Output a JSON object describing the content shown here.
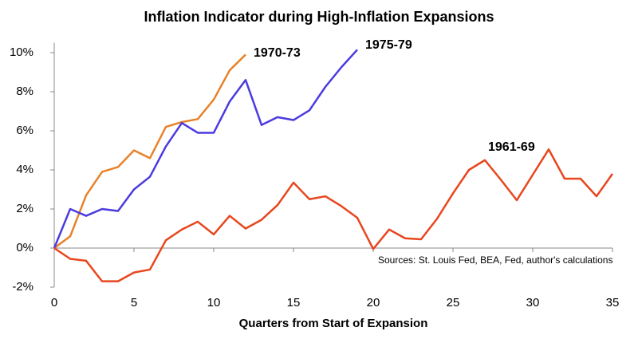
{
  "chart_data": {
    "type": "line",
    "title": "Inflation Indicator during High-Inflation Expansions",
    "x_label": "Quarters from Start of Expansion",
    "annotation": "Sources: St. Louis Fed, BEA, Fed, author's calculations",
    "x": [
      0,
      1,
      2,
      3,
      4,
      5,
      6,
      7,
      8,
      9,
      10,
      11,
      12,
      13,
      14,
      15,
      16,
      17,
      18,
      19,
      20,
      21,
      22,
      23,
      24,
      25,
      26,
      27,
      28,
      29,
      30,
      31,
      32,
      33,
      34,
      35
    ],
    "series": [
      {
        "name": "1970-73",
        "color": "#e8822a",
        "values": [
          0,
          0.6,
          2.7,
          3.9,
          4.15,
          5.0,
          4.6,
          6.2,
          6.45,
          6.6,
          7.6,
          9.1,
          9.9,
          null,
          null,
          null,
          null,
          null,
          null,
          null,
          null,
          null,
          null,
          null,
          null,
          null,
          null,
          null,
          null,
          null,
          null,
          null,
          null,
          null,
          null,
          null
        ]
      },
      {
        "name": "1975-79",
        "color": "#4b3be0",
        "values": [
          0,
          2.0,
          1.65,
          2.0,
          1.9,
          3.0,
          3.65,
          5.2,
          6.4,
          5.9,
          5.9,
          7.5,
          8.6,
          6.3,
          6.7,
          6.55,
          7.05,
          8.25,
          9.25,
          10.15,
          null,
          null,
          null,
          null,
          null,
          null,
          null,
          null,
          null,
          null,
          null,
          null,
          null,
          null,
          null,
          null
        ]
      },
      {
        "name": "1961-69",
        "color": "#e8461e",
        "values": [
          0,
          -0.55,
          -0.65,
          -1.7,
          -1.7,
          -1.25,
          -1.1,
          0.4,
          0.95,
          1.35,
          0.7,
          1.65,
          1.0,
          1.45,
          2.2,
          3.35,
          2.5,
          2.65,
          2.15,
          1.55,
          -0.05,
          0.95,
          0.5,
          0.45,
          1.5,
          2.8,
          4.0,
          4.5,
          3.5,
          2.45,
          3.75,
          5.05,
          3.55,
          3.55,
          2.65,
          3.8
        ]
      }
    ],
    "xlim": [
      0,
      35
    ],
    "xticks": [
      0,
      5,
      10,
      15,
      20,
      25,
      30,
      35
    ],
    "ylim": [
      -2,
      10.5
    ],
    "yticks": [
      {
        "value": -2,
        "label": "-2%"
      },
      {
        "value": 0,
        "label": "0%"
      },
      {
        "value": 2,
        "label": "2%"
      },
      {
        "value": 4,
        "label": "4%"
      },
      {
        "value": 6,
        "label": "6%"
      },
      {
        "value": 8,
        "label": "8%"
      },
      {
        "value": 10,
        "label": "10%"
      }
    ],
    "grid": false
  }
}
